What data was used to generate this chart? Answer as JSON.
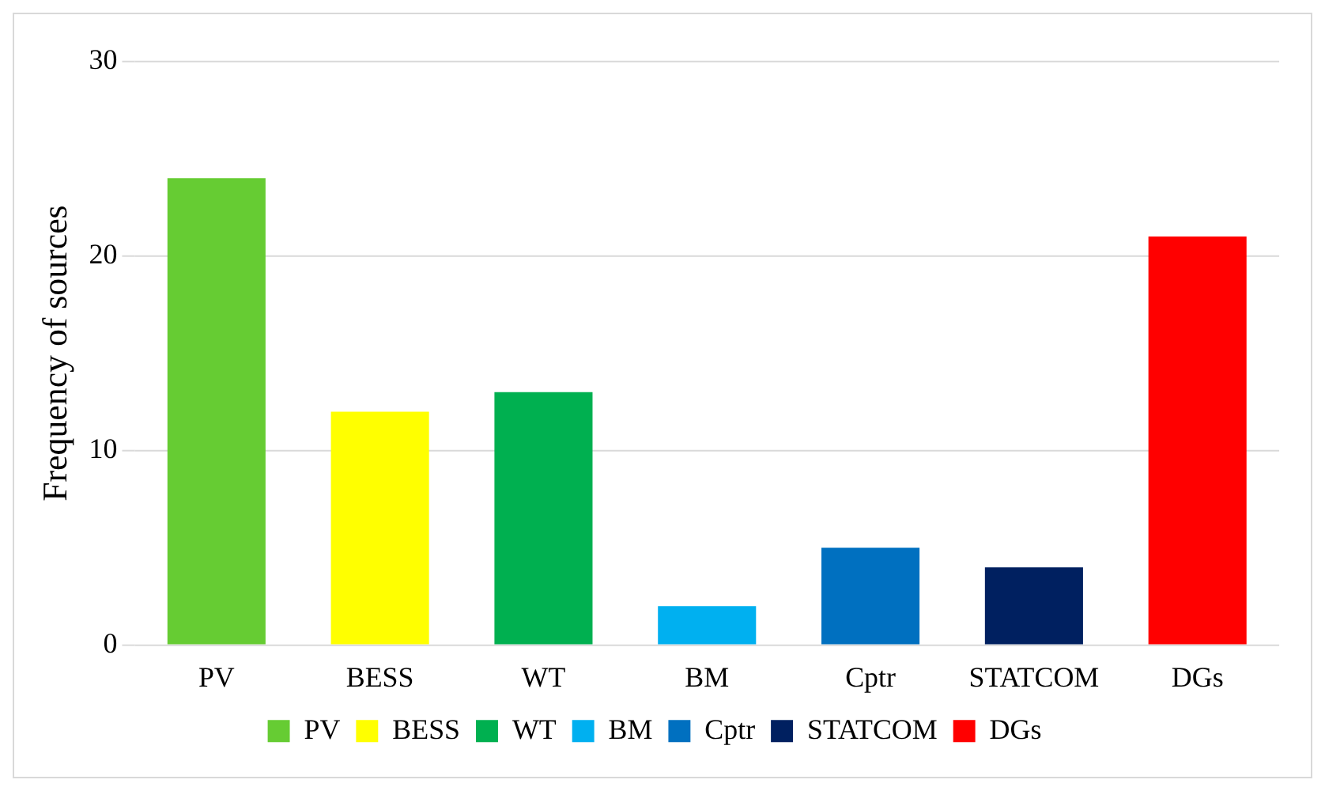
{
  "chart_data": {
    "type": "bar",
    "ylabel": "Frequency of sources",
    "categories": [
      "PV",
      "BESS",
      "WT",
      "BM",
      "Cptr",
      "STATCOM",
      "DGs"
    ],
    "series": [
      {
        "name": "PV",
        "color": "#66cc33",
        "values": [
          24,
          null,
          null,
          null,
          null,
          null,
          null
        ]
      },
      {
        "name": "BESS",
        "color": "#ffff00",
        "values": [
          null,
          12,
          null,
          null,
          null,
          null,
          null
        ]
      },
      {
        "name": "WT",
        "color": "#00b050",
        "values": [
          null,
          null,
          13,
          null,
          null,
          null,
          null
        ]
      },
      {
        "name": "BM",
        "color": "#00b0f0",
        "values": [
          null,
          null,
          null,
          2,
          null,
          null,
          null
        ]
      },
      {
        "name": "Cptr",
        "color": "#0070c0",
        "values": [
          null,
          null,
          null,
          null,
          5,
          null,
          null
        ]
      },
      {
        "name": "STATCOM",
        "color": "#002060",
        "values": [
          null,
          null,
          null,
          null,
          null,
          4,
          null
        ]
      },
      {
        "name": "DGs",
        "color": "#ff0000",
        "values": [
          null,
          null,
          null,
          null,
          null,
          null,
          21
        ]
      }
    ],
    "ylim": [
      0,
      30
    ],
    "yticks": [
      0,
      10,
      20,
      30
    ],
    "grid": "y",
    "legend": "bottom"
  }
}
